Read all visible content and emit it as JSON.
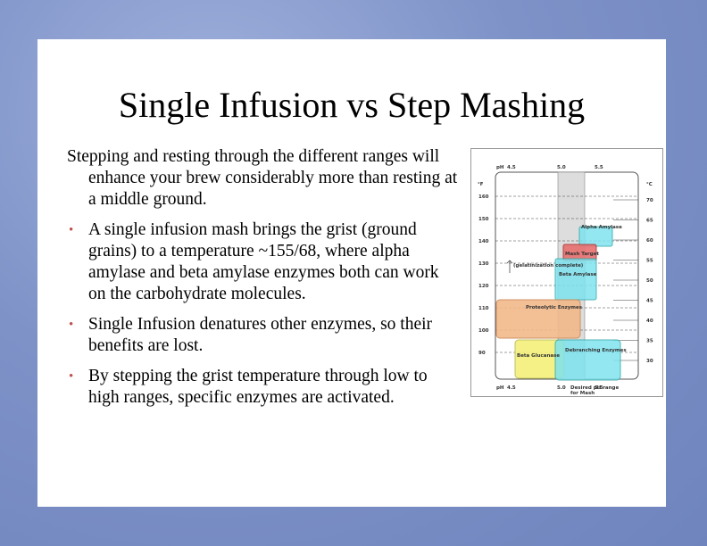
{
  "slide": {
    "title": "Single Infusion vs Step Mashing",
    "intro": "Stepping and resting through the different ranges will enhance your brew considerably more than resting at a middle ground.",
    "bullets": [
      "A single infusion mash brings the grist (ground grains) to a temperature ~155/68, where alpha amylase and beta amylase enzymes both can work on the carbohydrate molecules.",
      "Single Infusion denatures other enzymes, so their benefits are lost.",
      "By stepping the grist temperature through low to high ranges, specific enzymes are activated."
    ],
    "figure": {
      "ph_axis_label": "pH",
      "ph_ticks": [
        "4.5",
        "5.0",
        "5.5"
      ],
      "f_unit": "°F",
      "c_unit": "°C",
      "f_ticks": [
        "160",
        "150",
        "140",
        "130",
        "120",
        "110",
        "100",
        "90"
      ],
      "c_ticks": [
        "70",
        "65",
        "60",
        "55",
        "50",
        "45",
        "40",
        "35",
        "30"
      ],
      "regions": [
        "Alpha Amylase",
        "Mash Target",
        "Beta Amylase",
        "Proteolytic Enzymes",
        "Beta Glucanase",
        "Debranching Enzymes"
      ],
      "gelatinization": "(gelatinization complete)",
      "desired_ph": "Desired pH range for Mash"
    }
  }
}
